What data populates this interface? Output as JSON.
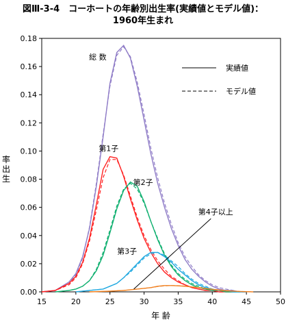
{
  "title_line1": "図Ⅲ-3-4　コーホートの年齢別出生率(実績値とモデル値)：",
  "title_line2": "1960年生まれ",
  "chart_data": {
    "type": "line",
    "xlabel": "年 齢",
    "ylabel": "率 出 生",
    "xlim": [
      15,
      50
    ],
    "ylim": [
      0,
      0.18
    ],
    "xticks": [
      "15",
      "20",
      "25",
      "30",
      "35",
      "40",
      "45",
      "50"
    ],
    "yticks": [
      "0.00",
      "0.02",
      "0.04",
      "0.06",
      "0.08",
      "0.10",
      "0.12",
      "0.14",
      "0.16",
      "0.18"
    ],
    "grid": false,
    "legend": {
      "position": "top-right",
      "entries": [
        {
          "label": "実績値",
          "style": "solid"
        },
        {
          "label": "モデル値",
          "style": "dashed"
        }
      ]
    },
    "series": [
      {
        "name": "総 数",
        "color": "#8f7cc7",
        "x": [
          15,
          17,
          19,
          20,
          21,
          22,
          23,
          24,
          25,
          26,
          27,
          28,
          29,
          30,
          31,
          32,
          33,
          34,
          35,
          36,
          37,
          38,
          39,
          40,
          41,
          42,
          43,
          44,
          45
        ],
        "actual": [
          0.0,
          0.001,
          0.007,
          0.013,
          0.025,
          0.045,
          0.075,
          0.11,
          0.148,
          0.17,
          0.175,
          0.166,
          0.146,
          0.122,
          0.098,
          0.077,
          0.06,
          0.045,
          0.033,
          0.023,
          0.016,
          0.011,
          0.007,
          0.004,
          0.002,
          0.001,
          0.001,
          0.0,
          0.0
        ],
        "model": [
          0.0,
          0.001,
          0.006,
          0.012,
          0.024,
          0.046,
          0.077,
          0.112,
          0.146,
          0.168,
          0.174,
          0.167,
          0.149,
          0.126,
          0.102,
          0.081,
          0.063,
          0.048,
          0.035,
          0.025,
          0.018,
          0.012,
          0.008,
          0.005,
          0.003,
          0.002,
          0.001,
          0.0,
          0.0
        ]
      },
      {
        "name": "第1子",
        "color": "#ff2020",
        "x": [
          15,
          17,
          19,
          20,
          21,
          22,
          23,
          24,
          25,
          26,
          27,
          28,
          29,
          30,
          31,
          32,
          33,
          34,
          35,
          36,
          37,
          38,
          39,
          40,
          41,
          42,
          43
        ],
        "actual": [
          0.0,
          0.001,
          0.006,
          0.011,
          0.021,
          0.038,
          0.062,
          0.087,
          0.096,
          0.095,
          0.082,
          0.066,
          0.051,
          0.038,
          0.028,
          0.02,
          0.014,
          0.01,
          0.007,
          0.005,
          0.003,
          0.002,
          0.001,
          0.001,
          0.0,
          0.0,
          0.0
        ],
        "model": [
          0.0,
          0.001,
          0.005,
          0.01,
          0.02,
          0.036,
          0.058,
          0.081,
          0.094,
          0.094,
          0.083,
          0.068,
          0.053,
          0.04,
          0.03,
          0.022,
          0.016,
          0.011,
          0.008,
          0.005,
          0.003,
          0.002,
          0.001,
          0.001,
          0.0,
          0.0,
          0.0
        ]
      },
      {
        "name": "第2子",
        "color": "#10b070",
        "x": [
          17,
          19,
          20,
          21,
          22,
          23,
          24,
          25,
          26,
          27,
          28,
          29,
          30,
          31,
          32,
          33,
          34,
          35,
          36,
          37,
          38,
          39,
          40,
          41,
          42,
          43,
          44
        ],
        "actual": [
          0.0,
          0.001,
          0.002,
          0.004,
          0.008,
          0.015,
          0.026,
          0.042,
          0.059,
          0.072,
          0.078,
          0.075,
          0.064,
          0.05,
          0.037,
          0.026,
          0.018,
          0.012,
          0.008,
          0.005,
          0.003,
          0.002,
          0.001,
          0.001,
          0.0,
          0.0,
          0.0
        ],
        "model": [
          0.0,
          0.001,
          0.002,
          0.004,
          0.008,
          0.016,
          0.028,
          0.044,
          0.061,
          0.073,
          0.077,
          0.073,
          0.063,
          0.05,
          0.038,
          0.027,
          0.019,
          0.013,
          0.009,
          0.006,
          0.004,
          0.002,
          0.001,
          0.001,
          0.0,
          0.0,
          0.0
        ]
      },
      {
        "name": "第3子",
        "color": "#20a8e0",
        "x": [
          20,
          22,
          24,
          25,
          26,
          27,
          28,
          29,
          30,
          31,
          32,
          33,
          34,
          35,
          36,
          37,
          38,
          39,
          40,
          41,
          42,
          43,
          44,
          45
        ],
        "actual": [
          0.0,
          0.001,
          0.002,
          0.004,
          0.006,
          0.01,
          0.015,
          0.02,
          0.025,
          0.028,
          0.028,
          0.025,
          0.021,
          0.016,
          0.012,
          0.008,
          0.005,
          0.003,
          0.002,
          0.001,
          0.001,
          0.0,
          0.0,
          0.0
        ],
        "model": [
          0.0,
          0.001,
          0.002,
          0.004,
          0.006,
          0.01,
          0.014,
          0.019,
          0.024,
          0.027,
          0.028,
          0.026,
          0.022,
          0.018,
          0.013,
          0.009,
          0.006,
          0.004,
          0.002,
          0.001,
          0.001,
          0.0,
          0.0,
          0.0
        ]
      },
      {
        "name": "第4子以上",
        "color": "#f08020",
        "x": [
          22,
          25,
          27,
          29,
          31,
          32,
          33,
          34,
          35,
          36,
          37,
          38,
          40,
          42,
          44,
          46
        ],
        "actual": [
          0.0,
          0.0005,
          0.001,
          0.002,
          0.003,
          0.004,
          0.0045,
          0.0045,
          0.0043,
          0.004,
          0.0035,
          0.003,
          0.0018,
          0.0008,
          0.0003,
          0.0
        ],
        "model": [
          0.0,
          0.0005,
          0.001,
          0.002,
          0.003,
          0.0038,
          0.0043,
          0.0045,
          0.0044,
          0.0041,
          0.0036,
          0.0031,
          0.0019,
          0.0009,
          0.0003,
          0.0
        ]
      }
    ]
  }
}
